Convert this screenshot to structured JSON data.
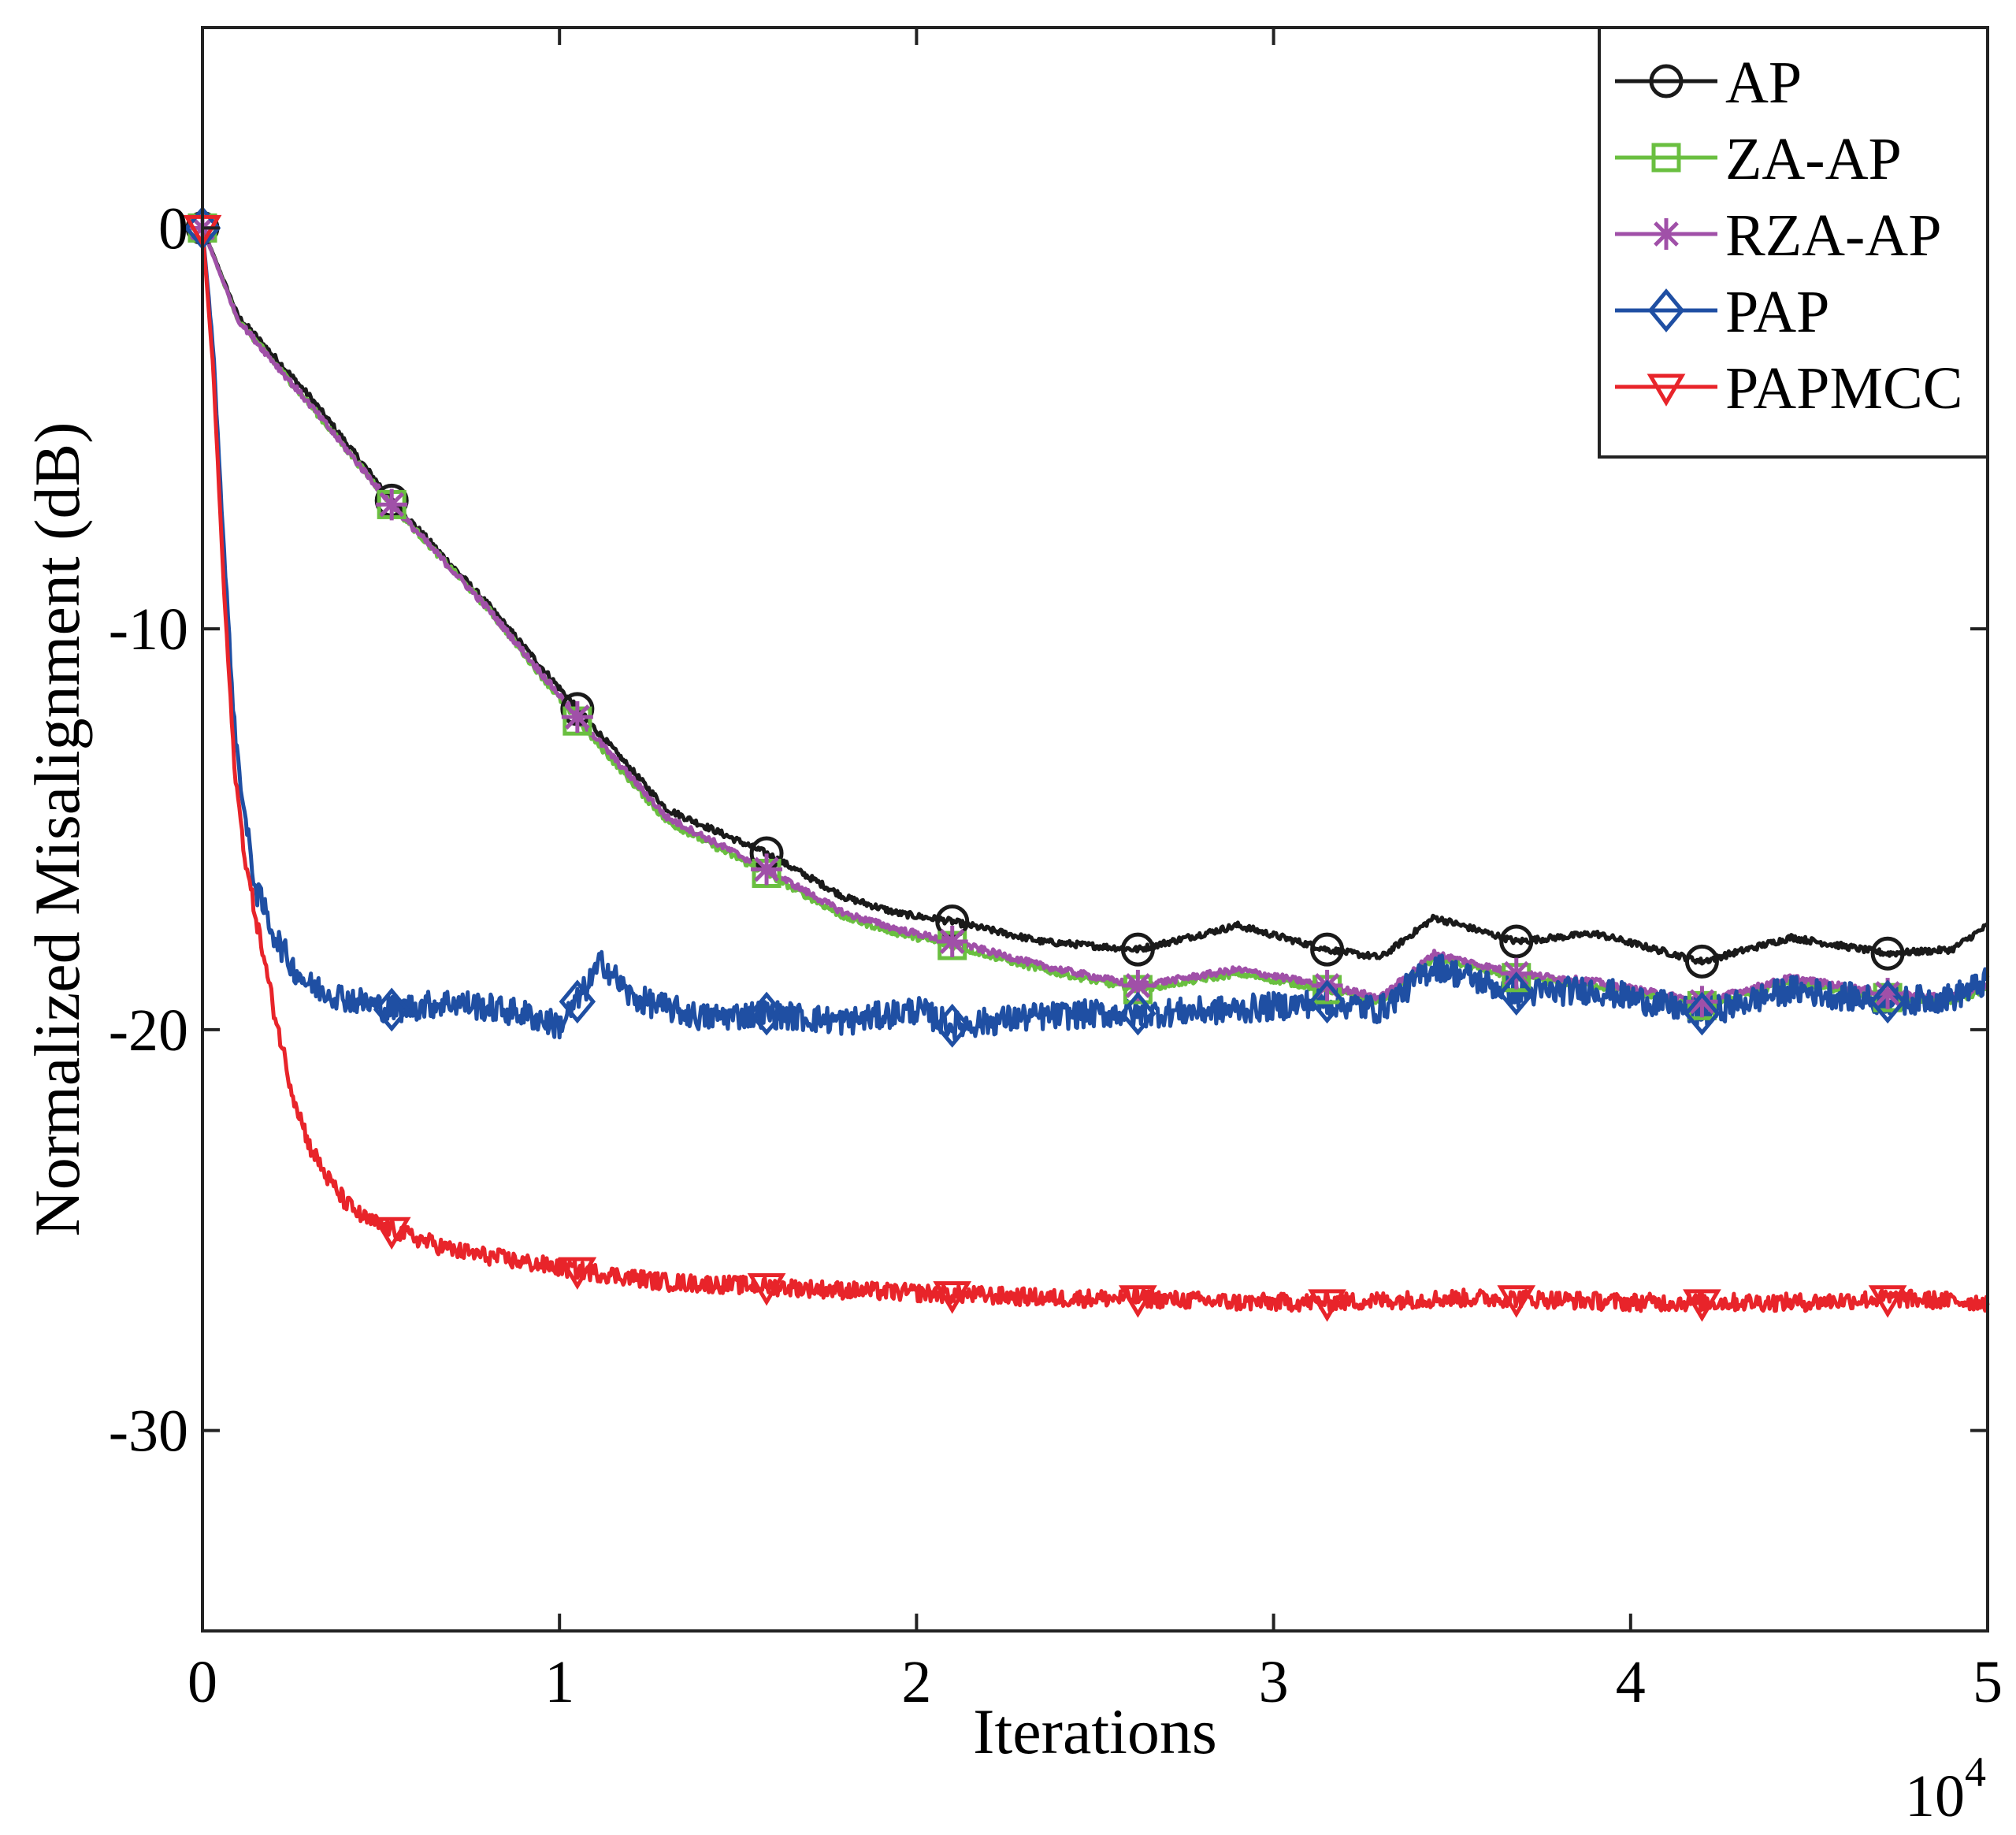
{
  "chart_data": {
    "type": "line",
    "title": "",
    "xlabel": "Iterations",
    "ylabel": "Normalized Misalignment (dB)",
    "x_multiplier_label": "10",
    "x_multiplier_exponent": "4",
    "xlim": [
      0,
      5
    ],
    "ylim": [
      -35,
      5
    ],
    "xticks": [
      0,
      1,
      2,
      3,
      4,
      5
    ],
    "xtick_labels": [
      "0",
      "1",
      "2",
      "3",
      "4",
      "5"
    ],
    "yticks": [
      -30,
      -20,
      -10,
      0
    ],
    "ytick_labels": [
      "-30",
      "-20",
      "-10",
      "0"
    ],
    "grid": false,
    "legend_position": "top-right",
    "series": [
      {
        "name": "AP",
        "color": "#1a1a1a",
        "marker": "circle",
        "x": [
          0,
          0.1,
          0.3,
          0.53,
          0.8,
          1.05,
          1.3,
          1.58,
          1.8,
          1.95,
          2.1,
          2.35,
          2.62,
          2.9,
          3.15,
          3.3,
          3.45,
          3.68,
          3.9,
          4.2,
          4.45,
          4.72,
          4.9,
          5.0
        ],
        "y": [
          0,
          -2.2,
          -4.2,
          -6.8,
          -9.4,
          -12.0,
          -14.5,
          -15.6,
          -16.7,
          -17.1,
          -17.3,
          -17.8,
          -18.0,
          -17.4,
          -18.0,
          -18.2,
          -17.2,
          -17.8,
          -17.6,
          -18.3,
          -17.7,
          -18.1,
          -18.0,
          -17.4
        ],
        "marker_x": [
          0,
          0.53,
          1.05,
          1.58,
          2.1,
          2.62,
          3.15,
          3.68,
          4.2,
          4.72
        ]
      },
      {
        "name": "ZA-AP",
        "color": "#6abf40",
        "marker": "square",
        "x": [
          0,
          0.1,
          0.3,
          0.53,
          0.8,
          1.05,
          1.3,
          1.58,
          1.8,
          1.95,
          2.1,
          2.35,
          2.62,
          2.9,
          3.15,
          3.3,
          3.45,
          3.68,
          3.9,
          4.2,
          4.45,
          4.72,
          4.9,
          5.0
        ],
        "y": [
          0,
          -2.3,
          -4.4,
          -6.9,
          -9.5,
          -12.3,
          -14.8,
          -16.1,
          -17.2,
          -17.6,
          -17.9,
          -18.5,
          -19.0,
          -18.6,
          -19.0,
          -19.3,
          -18.2,
          -18.7,
          -18.9,
          -19.4,
          -18.8,
          -19.2,
          -19.3,
          -19.0
        ],
        "marker_x": [
          0,
          0.53,
          1.05,
          1.58,
          2.1,
          2.62,
          3.15,
          3.68,
          4.2,
          4.72
        ]
      },
      {
        "name": "RZA-AP",
        "color": "#a050a8",
        "marker": "asterisk",
        "x": [
          0,
          0.1,
          0.3,
          0.53,
          0.8,
          1.05,
          1.3,
          1.58,
          1.8,
          1.95,
          2.1,
          2.35,
          2.62,
          2.9,
          3.15,
          3.3,
          3.45,
          3.68,
          3.9,
          4.2,
          4.45,
          4.72,
          4.9,
          5.0
        ],
        "y": [
          0,
          -2.3,
          -4.4,
          -6.9,
          -9.5,
          -12.2,
          -14.7,
          -16.0,
          -17.1,
          -17.5,
          -17.8,
          -18.4,
          -18.9,
          -18.5,
          -18.9,
          -19.2,
          -18.1,
          -18.6,
          -18.8,
          -19.3,
          -18.7,
          -19.1,
          -19.2,
          -18.9
        ],
        "marker_x": [
          0,
          0.53,
          1.05,
          1.58,
          2.1,
          2.62,
          3.15,
          3.68,
          4.2,
          4.72
        ]
      },
      {
        "name": "PAP",
        "color": "#1f4fa3",
        "marker": "diamond",
        "x": [
          0,
          0.03,
          0.06,
          0.09,
          0.12,
          0.15,
          0.2,
          0.25,
          0.3,
          0.4,
          0.53,
          0.7,
          0.9,
          1.0,
          1.05,
          1.12,
          1.2,
          1.4,
          1.58,
          1.8,
          2.0,
          2.1,
          2.3,
          2.5,
          2.62,
          2.9,
          3.15,
          3.3,
          3.45,
          3.68,
          3.9,
          4.2,
          4.45,
          4.72,
          4.9,
          5.0
        ],
        "y": [
          0,
          -3.0,
          -8.0,
          -12.5,
          -14.8,
          -16.5,
          -17.6,
          -18.4,
          -18.9,
          -19.2,
          -19.5,
          -19.3,
          -19.6,
          -19.9,
          -19.3,
          -18.3,
          -19.2,
          -19.7,
          -19.6,
          -19.8,
          -19.5,
          -19.9,
          -19.7,
          -19.6,
          -19.6,
          -19.5,
          -19.3,
          -19.5,
          -18.4,
          -19.1,
          -19.0,
          -19.6,
          -19.0,
          -19.3,
          -19.2,
          -18.8
        ],
        "marker_x": [
          0,
          0.53,
          1.05,
          1.58,
          2.1,
          2.62,
          3.15,
          3.68,
          4.2,
          4.72
        ]
      },
      {
        "name": "PAPMCC",
        "color": "#e8242a",
        "marker": "triangle-down",
        "x": [
          0,
          0.03,
          0.06,
          0.09,
          0.12,
          0.15,
          0.2,
          0.25,
          0.3,
          0.35,
          0.4,
          0.45,
          0.53,
          0.7,
          0.9,
          1.05,
          1.3,
          1.58,
          1.8,
          2.1,
          2.4,
          2.62,
          2.9,
          3.15,
          3.5,
          3.68,
          4.0,
          4.2,
          4.5,
          4.72,
          5.0
        ],
        "y": [
          0,
          -3.5,
          -9.0,
          -13.5,
          -15.8,
          -17.2,
          -19.5,
          -21.5,
          -22.9,
          -23.7,
          -24.3,
          -24.7,
          -25.0,
          -25.5,
          -25.8,
          -26.0,
          -26.3,
          -26.4,
          -26.5,
          -26.6,
          -26.7,
          -26.7,
          -26.8,
          -26.8,
          -26.7,
          -26.7,
          -26.8,
          -26.8,
          -26.8,
          -26.7,
          -26.8
        ],
        "marker_x": [
          0,
          0.53,
          1.05,
          1.58,
          2.1,
          2.62,
          3.15,
          3.68,
          4.2,
          4.72
        ]
      }
    ]
  }
}
